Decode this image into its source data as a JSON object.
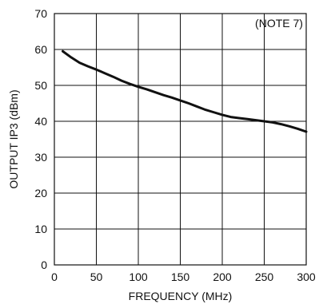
{
  "chart_data": {
    "type": "line",
    "title": "",
    "xlabel": "FREQUENCY (MHz)",
    "ylabel": "OUTPUT IP3 (dBm)",
    "xlim": [
      0,
      300
    ],
    "ylim": [
      0,
      70
    ],
    "x_ticks": [
      0,
      50,
      100,
      150,
      200,
      250,
      300
    ],
    "y_ticks": [
      0,
      10,
      20,
      30,
      40,
      50,
      60,
      70
    ],
    "x_tick_labels": [
      "0",
      "50",
      "100",
      "150",
      "200",
      "250",
      "300"
    ],
    "y_tick_labels": [
      "0",
      "10",
      "20",
      "30",
      "40",
      "50",
      "60",
      "70"
    ],
    "grid": true,
    "legend": "none",
    "annotation": "(NOTE 7)",
    "series": [
      {
        "x": [
          10,
          20,
          30,
          40,
          50,
          60,
          70,
          80,
          90,
          100,
          110,
          120,
          130,
          140,
          150,
          160,
          170,
          180,
          190,
          200,
          210,
          220,
          230,
          240,
          250,
          260,
          270,
          280,
          290,
          300
        ],
        "values": [
          59.5,
          57.8,
          56.3,
          55.3,
          54.4,
          53.4,
          52.4,
          51.3,
          50.4,
          49.6,
          48.9,
          48.1,
          47.3,
          46.6,
          45.8,
          45.0,
          44.1,
          43.2,
          42.5,
          41.8,
          41.2,
          40.9,
          40.6,
          40.3,
          40.0,
          39.7,
          39.2,
          38.6,
          37.9,
          37.1
        ],
        "color": "#111111"
      }
    ]
  }
}
